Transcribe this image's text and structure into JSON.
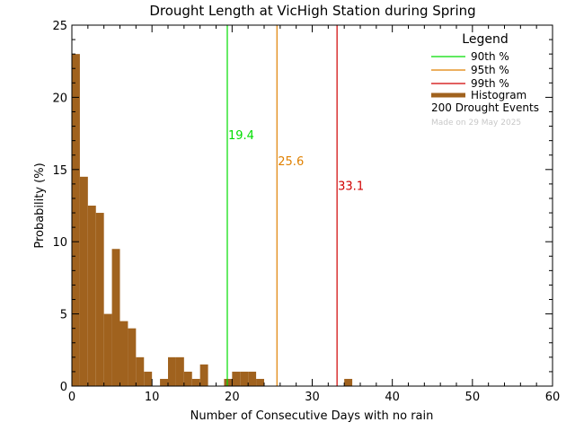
{
  "chart_data": {
    "type": "bar",
    "title": "Drought Length at VicHigh Station during Spring",
    "xlabel": "Number of Consecutive Days with no rain",
    "ylabel": "Probability (%)",
    "xlim": [
      0,
      60
    ],
    "ylim": [
      0,
      25
    ],
    "x_ticks": [
      0,
      10,
      20,
      30,
      40,
      50,
      60
    ],
    "y_ticks": [
      0,
      5,
      10,
      15,
      20,
      25
    ],
    "grid": false,
    "histogram": {
      "name": "Histogram",
      "color": "#a0621e",
      "bin_width": 1,
      "x": [
        0,
        1,
        2,
        3,
        4,
        5,
        6,
        7,
        8,
        9,
        10,
        11,
        12,
        13,
        14,
        15,
        16,
        17,
        18,
        19,
        20,
        21,
        22,
        23,
        24,
        25,
        26,
        27,
        28,
        29,
        30,
        31,
        32,
        33,
        34,
        35
      ],
      "values": [
        23.0,
        14.5,
        12.5,
        12.0,
        5.0,
        9.5,
        4.5,
        4.0,
        2.0,
        1.0,
        0,
        0.5,
        2.0,
        2.0,
        1.0,
        0.5,
        1.5,
        0,
        0,
        0.5,
        1.0,
        1.0,
        1.0,
        0.5,
        0,
        0,
        0,
        0,
        0,
        0,
        0,
        0,
        0,
        0,
        0.5,
        0
      ]
    },
    "percentiles": [
      {
        "name": "90th %",
        "value": 19.4,
        "label": "19.4",
        "color": "#00dd00",
        "label_y": 17.4
      },
      {
        "name": "95th %",
        "value": 25.6,
        "label": "25.6",
        "color": "#e08000",
        "label_y": 15.6
      },
      {
        "name": "99th %",
        "value": 33.1,
        "label": "33.1",
        "color": "#d00000",
        "label_y": 13.9
      }
    ],
    "legend": {
      "title": "Legend",
      "position": "top-right",
      "events_text": "200 Drought Events",
      "made_on": "Made on 29 May 2025"
    }
  }
}
